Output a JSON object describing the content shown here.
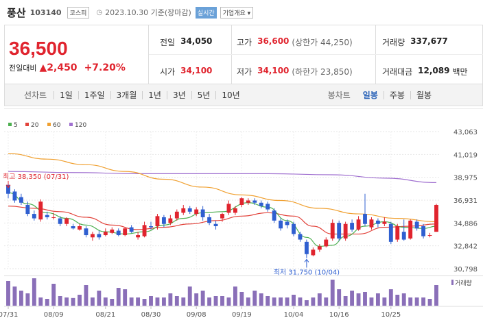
{
  "header": {
    "name": "풍산",
    "code": "103140",
    "market": "코스피",
    "date": "2023.10.30 기준(장마감)",
    "live": "실시간",
    "info": "기업개요"
  },
  "price": {
    "current": "36,500",
    "change_label": "전일대비",
    "change_abs": "2,450",
    "change_pct": "+7.20%"
  },
  "stats": {
    "prev_label": "전일",
    "prev_value": "34,050",
    "high_label": "고가",
    "high_value": "36,600",
    "upper_label": "(상한가 44,250)",
    "volume_label": "거래량",
    "volume_value": "337,677",
    "open_label": "시가",
    "open_value": "34,100",
    "low_label": "저가",
    "low_value": "34,100",
    "lower_label": "(하한가 23,850)",
    "amount_label": "거래대금",
    "amount_value": "12,089",
    "amount_unit": "백만"
  },
  "tabs": {
    "line_title": "선차트",
    "line_tabs": [
      "1일",
      "1주일",
      "3개월",
      "1년",
      "3년",
      "5년",
      "10년"
    ],
    "candle_title": "봉차트",
    "candle_tabs": [
      "일봉",
      "주봉",
      "월봉"
    ],
    "active_candle": "일봉"
  },
  "colors": {
    "up": "#e0242e",
    "down": "#2f5fd0",
    "ma5": "#4caf50",
    "ma20": "#e2423a",
    "ma60": "#f0a030",
    "ma120": "#a070d0",
    "volume": "#8a6fb8"
  },
  "chart_data": {
    "type": "candlestick",
    "legend": [
      "5",
      "20",
      "60",
      "120"
    ],
    "ylim": [
      30798,
      43063
    ],
    "y_ticks": [
      "43,063",
      "41,019",
      "38,975",
      "36,931",
      "34,886",
      "32,842",
      "30,798"
    ],
    "x_labels": [
      "07/31",
      "08/09",
      "08/21",
      "08/30",
      "09/08",
      "09/19",
      "10/04",
      "10/16",
      "10/25"
    ],
    "x_label_index": [
      0,
      7,
      15,
      22,
      29,
      36,
      44,
      51,
      59
    ],
    "high_annotation": "최고 38,350 (07/31)",
    "low_annotation": "최저 31,750 (10/04)",
    "volume_label": "거래량",
    "candles": [
      {
        "o": 38300,
        "c": 37500,
        "h": 38350,
        "l": 37100
      },
      {
        "o": 37700,
        "c": 36900,
        "h": 37900,
        "l": 36700
      },
      {
        "o": 37200,
        "c": 36700,
        "h": 37500,
        "l": 36500
      },
      {
        "o": 36500,
        "c": 35700,
        "h": 36800,
        "l": 35500
      },
      {
        "o": 35700,
        "c": 35300,
        "h": 36000,
        "l": 35100
      },
      {
        "o": 35200,
        "c": 36800,
        "h": 37000,
        "l": 35000
      },
      {
        "o": 35600,
        "c": 35400,
        "h": 35900,
        "l": 35200
      },
      {
        "o": 35400,
        "c": 35400,
        "h": 35800,
        "l": 35200
      },
      {
        "o": 35300,
        "c": 34800,
        "h": 35500,
        "l": 34600
      },
      {
        "o": 34800,
        "c": 35300,
        "h": 35400,
        "l": 34600
      },
      {
        "o": 34600,
        "c": 34400,
        "h": 34800,
        "l": 34300
      },
      {
        "o": 34300,
        "c": 34600,
        "h": 34800,
        "l": 34200
      },
      {
        "o": 34400,
        "c": 33800,
        "h": 34600,
        "l": 33600
      },
      {
        "o": 33600,
        "c": 33900,
        "h": 34100,
        "l": 33300
      },
      {
        "o": 33900,
        "c": 33600,
        "h": 34200,
        "l": 33400
      },
      {
        "o": 33800,
        "c": 34100,
        "h": 34400,
        "l": 33700
      },
      {
        "o": 34000,
        "c": 34300,
        "h": 34500,
        "l": 33900
      },
      {
        "o": 34200,
        "c": 33800,
        "h": 34400,
        "l": 33700
      },
      {
        "o": 33800,
        "c": 34400,
        "h": 34500,
        "l": 33700
      },
      {
        "o": 34500,
        "c": 34100,
        "h": 34700,
        "l": 34000
      },
      {
        "o": 33600,
        "c": 33800,
        "h": 34100,
        "l": 33400
      },
      {
        "o": 33700,
        "c": 34700,
        "h": 35000,
        "l": 33600
      },
      {
        "o": 34600,
        "c": 34500,
        "h": 35000,
        "l": 34300
      },
      {
        "o": 34600,
        "c": 35500,
        "h": 35700,
        "l": 34300
      },
      {
        "o": 35400,
        "c": 34800,
        "h": 35600,
        "l": 34500
      },
      {
        "o": 34900,
        "c": 35300,
        "h": 35600,
        "l": 34700
      },
      {
        "o": 35300,
        "c": 35900,
        "h": 36100,
        "l": 35100
      },
      {
        "o": 35800,
        "c": 36200,
        "h": 36500,
        "l": 35600
      },
      {
        "o": 36200,
        "c": 35900,
        "h": 36400,
        "l": 35700
      },
      {
        "o": 35700,
        "c": 36100,
        "h": 36300,
        "l": 35500
      },
      {
        "o": 36100,
        "c": 35400,
        "h": 36400,
        "l": 35100
      },
      {
        "o": 35400,
        "c": 34900,
        "h": 35700,
        "l": 34700
      },
      {
        "o": 34800,
        "c": 34600,
        "h": 35100,
        "l": 34300
      },
      {
        "o": 35300,
        "c": 35700,
        "h": 35800,
        "l": 35000
      },
      {
        "o": 35800,
        "c": 36600,
        "h": 36900,
        "l": 35600
      },
      {
        "o": 35800,
        "c": 36200,
        "h": 36400,
        "l": 35600
      },
      {
        "o": 36500,
        "c": 37100,
        "h": 37200,
        "l": 36300
      },
      {
        "o": 36700,
        "c": 36900,
        "h": 37100,
        "l": 36500
      },
      {
        "o": 36900,
        "c": 36700,
        "h": 37100,
        "l": 36500
      },
      {
        "o": 36700,
        "c": 36400,
        "h": 36900,
        "l": 36200
      },
      {
        "o": 36600,
        "c": 36100,
        "h": 36800,
        "l": 35900
      },
      {
        "o": 36000,
        "c": 35100,
        "h": 36200,
        "l": 34900
      },
      {
        "o": 35100,
        "c": 34400,
        "h": 35300,
        "l": 34200
      },
      {
        "o": 35000,
        "c": 34700,
        "h": 35200,
        "l": 34400
      },
      {
        "o": 34800,
        "c": 33900,
        "h": 35000,
        "l": 33700
      },
      {
        "o": 33900,
        "c": 33400,
        "h": 34100,
        "l": 33200
      },
      {
        "o": 33200,
        "c": 32100,
        "h": 33400,
        "l": 31750
      },
      {
        "o": 32000,
        "c": 32500,
        "h": 32700,
        "l": 31900
      },
      {
        "o": 32500,
        "c": 32800,
        "h": 33000,
        "l": 32300
      },
      {
        "o": 32800,
        "c": 33400,
        "h": 33600,
        "l": 32700
      },
      {
        "o": 33500,
        "c": 34900,
        "h": 35200,
        "l": 33300
      },
      {
        "o": 34900,
        "c": 33500,
        "h": 35100,
        "l": 33300
      },
      {
        "o": 33500,
        "c": 34800,
        "h": 35000,
        "l": 33300
      },
      {
        "o": 34900,
        "c": 34300,
        "h": 35200,
        "l": 34100
      },
      {
        "o": 34300,
        "c": 35200,
        "h": 35500,
        "l": 34200
      },
      {
        "o": 35700,
        "c": 34800,
        "h": 37500,
        "l": 34600
      },
      {
        "o": 34500,
        "c": 35200,
        "h": 35400,
        "l": 34300
      },
      {
        "o": 35100,
        "c": 34800,
        "h": 35300,
        "l": 34500
      },
      {
        "o": 34800,
        "c": 35000,
        "h": 35400,
        "l": 34600
      },
      {
        "o": 34800,
        "c": 33200,
        "h": 35000,
        "l": 33000
      },
      {
        "o": 33400,
        "c": 34600,
        "h": 34800,
        "l": 33200
      },
      {
        "o": 34100,
        "c": 33400,
        "h": 35200,
        "l": 33300
      },
      {
        "o": 33500,
        "c": 35100,
        "h": 35200,
        "l": 33400
      },
      {
        "o": 35000,
        "c": 34400,
        "h": 35200,
        "l": 34200
      },
      {
        "o": 34600,
        "c": 33700,
        "h": 34800,
        "l": 33500
      },
      {
        "o": 33800,
        "c": 33800,
        "h": 34000,
        "l": 33600
      },
      {
        "o": 34100,
        "c": 36500,
        "h": 36600,
        "l": 34100
      }
    ],
    "volume": [
      0.9,
      0.7,
      0.55,
      0.45,
      1.0,
      0.3,
      0.25,
      0.8,
      0.35,
      0.3,
      0.28,
      0.4,
      0.75,
      0.3,
      0.55,
      0.3,
      0.25,
      0.65,
      0.6,
      0.3,
      0.3,
      0.25,
      0.35,
      0.3,
      0.3,
      0.45,
      0.35,
      0.3,
      0.7,
      0.45,
      0.55,
      0.3,
      0.35,
      0.35,
      0.3,
      0.7,
      0.5,
      0.3,
      0.55,
      0.45,
      0.35,
      0.3,
      0.3,
      0.3,
      0.4,
      0.3,
      0.2,
      0.3,
      0.45,
      0.3,
      0.95,
      0.6,
      0.35,
      0.55,
      0.45,
      0.5,
      0.3,
      0.45,
      0.3,
      0.6,
      0.4,
      0.45,
      0.3,
      0.3,
      0.3,
      0.25,
      0.75
    ],
    "ma": {
      "ma5": [
        [
          0,
          37600
        ],
        [
          3,
          36600
        ],
        [
          6,
          35800
        ],
        [
          9,
          35300
        ],
        [
          12,
          34700
        ],
        [
          15,
          34100
        ],
        [
          18,
          33900
        ],
        [
          21,
          34100
        ],
        [
          24,
          34700
        ],
        [
          27,
          35300
        ],
        [
          30,
          35800
        ],
        [
          33,
          35900
        ],
        [
          37,
          36700
        ],
        [
          40,
          36300
        ],
        [
          43,
          35100
        ],
        [
          46,
          33600
        ],
        [
          48,
          32800
        ],
        [
          50,
          32900
        ],
        [
          52,
          33700
        ],
        [
          55,
          34600
        ],
        [
          58,
          35000
        ],
        [
          61,
          34500
        ],
        [
          64,
          34400
        ],
        [
          66,
          34600
        ]
      ],
      "ma20": [
        [
          0,
          36400
        ],
        [
          4,
          36200
        ],
        [
          8,
          35900
        ],
        [
          12,
          35400
        ],
        [
          16,
          34700
        ],
        [
          20,
          34300
        ],
        [
          24,
          34500
        ],
        [
          28,
          34800
        ],
        [
          32,
          35100
        ],
        [
          36,
          35500
        ],
        [
          40,
          35800
        ],
        [
          44,
          35500
        ],
        [
          47,
          34600
        ],
        [
          50,
          33900
        ],
        [
          54,
          33900
        ],
        [
          58,
          34500
        ],
        [
          62,
          34600
        ],
        [
          66,
          34800
        ]
      ],
      "ma60": [
        [
          0,
          41100
        ],
        [
          6,
          40600
        ],
        [
          12,
          40100
        ],
        [
          18,
          39500
        ],
        [
          24,
          38800
        ],
        [
          30,
          38100
        ],
        [
          36,
          37400
        ],
        [
          42,
          36900
        ],
        [
          48,
          36200
        ],
        [
          54,
          35700
        ],
        [
          60,
          35300
        ],
        [
          66,
          35000
        ]
      ],
      "ma120": [
        [
          0,
          39500
        ],
        [
          10,
          39400
        ],
        [
          20,
          39300
        ],
        [
          30,
          39300
        ],
        [
          40,
          39300
        ],
        [
          50,
          39200
        ],
        [
          58,
          38900
        ],
        [
          66,
          38500
        ]
      ]
    }
  }
}
